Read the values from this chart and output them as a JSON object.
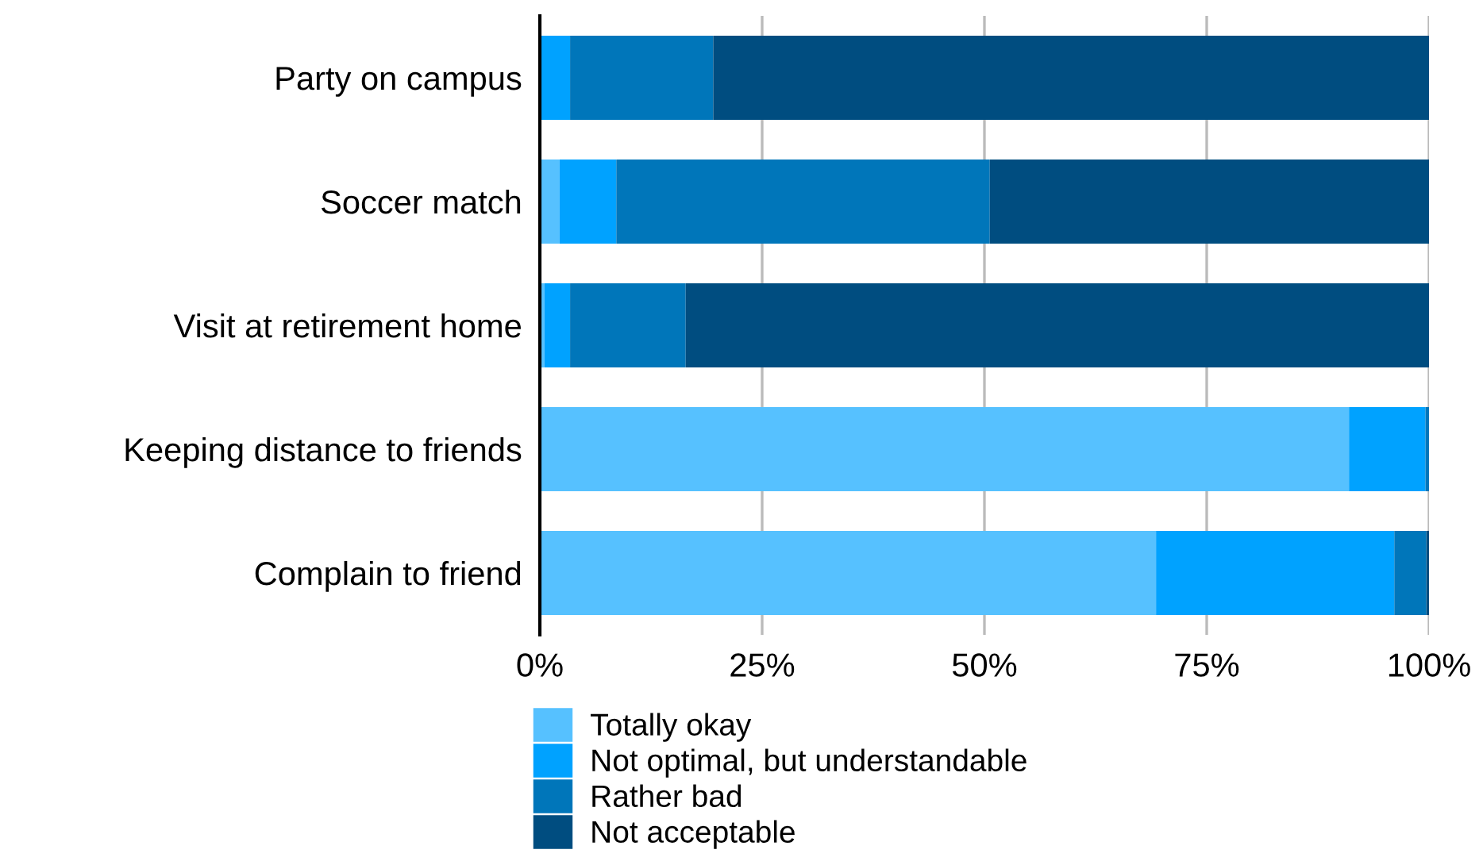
{
  "chart_data": {
    "type": "bar",
    "orientation": "horizontal",
    "stacked": true,
    "categories": [
      "Party on campus",
      "Soccer match",
      "Visit at retirement home",
      "Keeping distance to friends",
      "Complain to friend"
    ],
    "series": [
      {
        "name": "Totally okay",
        "color": "#56c1ff",
        "values": [
          0,
          2.2,
          0.5,
          91,
          69.3
        ]
      },
      {
        "name": "Not optimal, but understandable",
        "color": "#00a2ff",
        "values": [
          3.4,
          6.4,
          2.9,
          8.6,
          26.8
        ]
      },
      {
        "name": "Rather bad",
        "color": "#0076ba",
        "values": [
          16.1,
          42,
          13,
          0.4,
          3.6
        ]
      },
      {
        "name": "Not acceptable",
        "color": "#004d80",
        "values": [
          80.5,
          49.4,
          83.6,
          0,
          0.3
        ]
      }
    ],
    "xlim": [
      0,
      100
    ],
    "xticks": [
      {
        "value": 0,
        "label": "0%"
      },
      {
        "value": 25,
        "label": "25%"
      },
      {
        "value": 50,
        "label": "50%"
      },
      {
        "value": 75,
        "label": "75%"
      },
      {
        "value": 100,
        "label": "100%"
      }
    ],
    "grid": "x",
    "legend": "bottom"
  }
}
